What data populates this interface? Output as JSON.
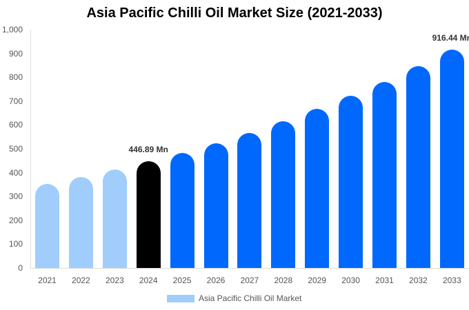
{
  "chart_data": {
    "type": "bar",
    "title": "Asia Pacific Chilli Oil Market Size (2021-2033)",
    "xlabel": "",
    "ylabel": "",
    "ylim": [
      0,
      1000
    ],
    "yticks": [
      "0",
      "100",
      "200",
      "300",
      "400",
      "500",
      "600",
      "700",
      "800",
      "900",
      "1,000"
    ],
    "grid": false,
    "legend_position": "bottom",
    "categories": [
      "2021",
      "2022",
      "2023",
      "2024",
      "2025",
      "2026",
      "2027",
      "2028",
      "2029",
      "2030",
      "2031",
      "2032",
      "2033"
    ],
    "series": [
      {
        "name": "Asia Pacific Chilli Oil Market",
        "values": [
          351.7,
          381.0,
          412.6,
          446.89,
          484.0,
          524.3,
          567.9,
          615.1,
          666.2,
          721.6,
          781.5,
          846.5,
          916.44
        ]
      }
    ],
    "bar_colors": [
      "#a0cdfc",
      "#a0cdfc",
      "#a0cdfc",
      "#000000",
      "#0068fd",
      "#0068fd",
      "#0068fd",
      "#0068fd",
      "#0068fd",
      "#0068fd",
      "#0068fd",
      "#0068fd",
      "#0068fd"
    ],
    "annotations": [
      {
        "category": "2024",
        "text": "446.89 Mn"
      },
      {
        "category": "2033",
        "text": "916.44 Mn"
      }
    ]
  },
  "legend": {
    "label": "Asia Pacific Chilli Oil Market",
    "color": "#a0cdfc"
  }
}
